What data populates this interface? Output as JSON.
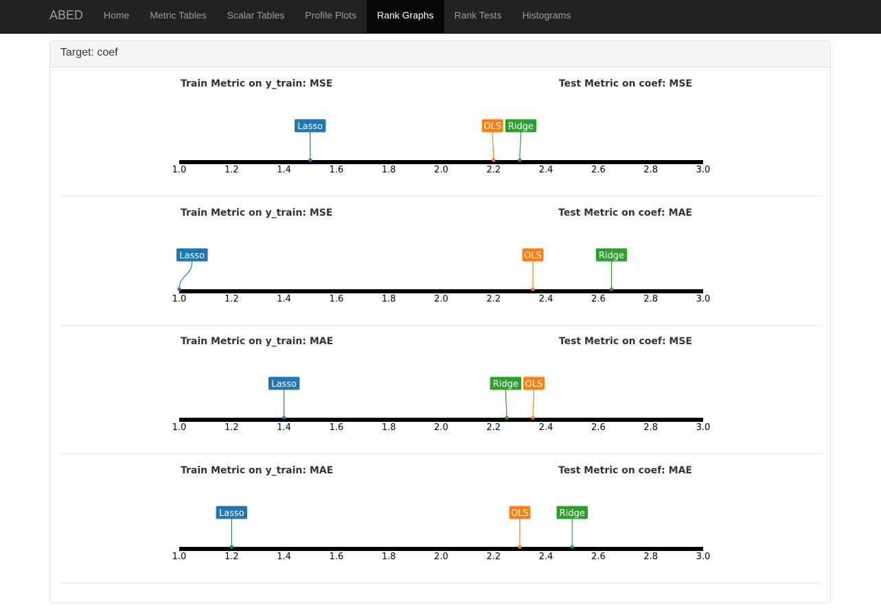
{
  "navbar": {
    "brand": "ABED",
    "items": [
      {
        "label": "Home",
        "active": false
      },
      {
        "label": "Metric Tables",
        "active": false
      },
      {
        "label": "Scalar Tables",
        "active": false
      },
      {
        "label": "Profile Plots",
        "active": false
      },
      {
        "label": "Rank Graphs",
        "active": true
      },
      {
        "label": "Rank Tests",
        "active": false
      },
      {
        "label": "Histograms",
        "active": false
      }
    ]
  },
  "panel": {
    "heading": "Target: coef"
  },
  "colors": {
    "Lasso": "#1f77b4",
    "OLS": "#ff7f0e",
    "Ridge": "#2ca02c"
  },
  "chart_data": [
    {
      "type": "scatter",
      "train_title": "Train Metric on y_train: MSE",
      "test_title": "Test Metric on coef: MSE",
      "xlim": [
        1.0,
        3.0
      ],
      "ticks": [
        "1.0",
        "1.2",
        "1.4",
        "1.6",
        "1.8",
        "2.0",
        "2.2",
        "2.4",
        "2.6",
        "2.8",
        "3.0"
      ],
      "series": [
        {
          "name": "Lasso",
          "rank": 1.5
        },
        {
          "name": "OLS",
          "rank": 2.2
        },
        {
          "name": "Ridge",
          "rank": 2.3
        }
      ]
    },
    {
      "type": "scatter",
      "train_title": "Train Metric on y_train: MSE",
      "test_title": "Test Metric on coef: MAE",
      "xlim": [
        1.0,
        3.0
      ],
      "ticks": [
        "1.0",
        "1.2",
        "1.4",
        "1.6",
        "1.8",
        "2.0",
        "2.2",
        "2.4",
        "2.6",
        "2.8",
        "3.0"
      ],
      "series": [
        {
          "name": "Lasso",
          "rank": 1.0
        },
        {
          "name": "OLS",
          "rank": 2.35
        },
        {
          "name": "Ridge",
          "rank": 2.65
        }
      ]
    },
    {
      "type": "scatter",
      "train_title": "Train Metric on y_train: MAE",
      "test_title": "Test Metric on coef: MSE",
      "xlim": [
        1.0,
        3.0
      ],
      "ticks": [
        "1.0",
        "1.2",
        "1.4",
        "1.6",
        "1.8",
        "2.0",
        "2.2",
        "2.4",
        "2.6",
        "2.8",
        "3.0"
      ],
      "series": [
        {
          "name": "Lasso",
          "rank": 1.4
        },
        {
          "name": "Ridge",
          "rank": 2.25
        },
        {
          "name": "OLS",
          "rank": 2.35
        }
      ]
    },
    {
      "type": "scatter",
      "train_title": "Train Metric on y_train: MAE",
      "test_title": "Test Metric on coef: MAE",
      "xlim": [
        1.0,
        3.0
      ],
      "ticks": [
        "1.0",
        "1.2",
        "1.4",
        "1.6",
        "1.8",
        "2.0",
        "2.2",
        "2.4",
        "2.6",
        "2.8",
        "3.0"
      ],
      "series": [
        {
          "name": "Lasso",
          "rank": 1.2
        },
        {
          "name": "OLS",
          "rank": 2.3
        },
        {
          "name": "Ridge",
          "rank": 2.5
        }
      ]
    }
  ]
}
